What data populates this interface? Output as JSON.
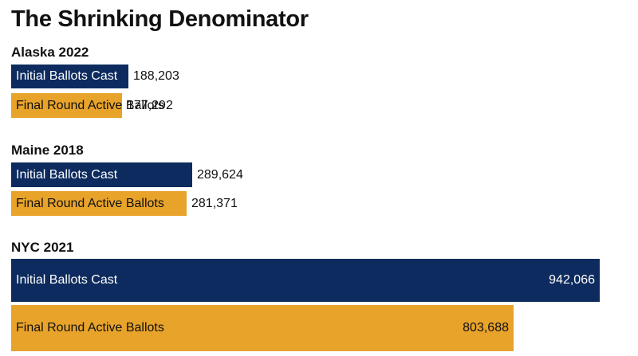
{
  "chart_data": {
    "type": "bar",
    "orientation": "horizontal",
    "title": "The Shrinking Denominator",
    "xlim": [
      0,
      942066
    ],
    "colors": {
      "Initial Ballots Cast": "#0d2b5e",
      "Final Round Active Ballots": "#e8a32b"
    },
    "groups": [
      {
        "name": "Alaska 2022",
        "bars": [
          {
            "label": "Initial Ballots Cast",
            "value": 188203,
            "value_text": "188,203"
          },
          {
            "label": "Final Round Active Ballots",
            "value": 177292,
            "value_text": "177,292"
          }
        ]
      },
      {
        "name": "Maine 2018",
        "bars": [
          {
            "label": "Initial Ballots Cast",
            "value": 289624,
            "value_text": "289,624"
          },
          {
            "label": "Final Round Active Ballots",
            "value": 281371,
            "value_text": "281,371"
          }
        ]
      },
      {
        "name": "NYC 2021",
        "bars": [
          {
            "label": "Initial Ballots Cast",
            "value": 942066,
            "value_text": "942,066"
          },
          {
            "label": "Final Round Active Ballots",
            "value": 803688,
            "value_text": "803,688"
          }
        ]
      }
    ]
  }
}
